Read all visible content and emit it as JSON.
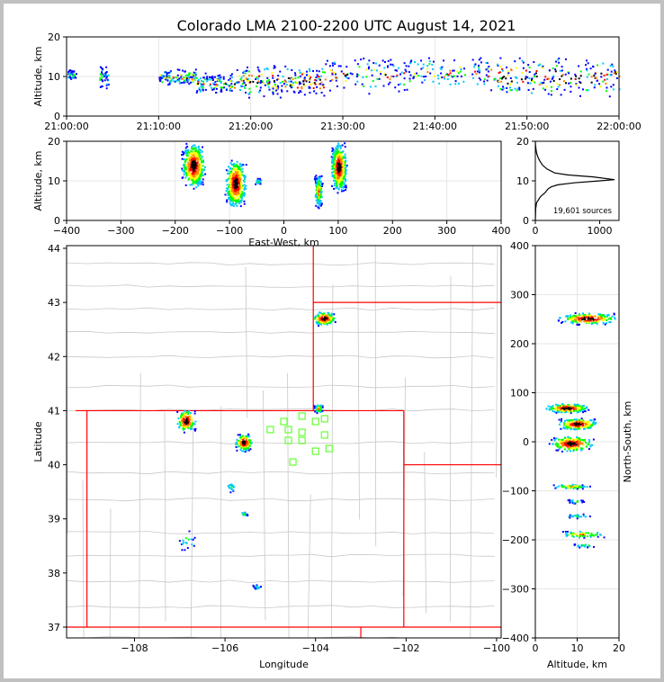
{
  "title": "Colorado LMA 2100-2200 UTC August 14, 2021",
  "colors": {
    "frame_background": "#c0c0c0",
    "state_border": "#ff0000",
    "county_border": "#c8c8c8",
    "station_marker": "#66ff33",
    "density_palette": [
      "#0000ff",
      "#00c8ff",
      "#00ff00",
      "#ffff00",
      "#ff8000",
      "#ff0000",
      "#000000"
    ]
  },
  "chart_data": [
    {
      "id": "altitude-time",
      "type": "heatmap",
      "xlabel": "",
      "ylabel": "Altitude, km",
      "x_ticks": [
        "21:00:00",
        "21:10:00",
        "21:20:00",
        "21:30:00",
        "21:40:00",
        "21:50:00",
        "22:00:00"
      ],
      "y_ticks": [
        0,
        10,
        20
      ],
      "ylim": [
        0,
        20
      ],
      "x_range_minutes": [
        0,
        60
      ],
      "grid": true,
      "source_clusters": [
        {
          "t_min": [
            0,
            1
          ],
          "alt": [
            9,
            12
          ],
          "density": "low"
        },
        {
          "t_min": [
            3.5,
            4.5
          ],
          "alt": [
            7,
            13
          ],
          "density": "low"
        },
        {
          "t_min": [
            10,
            14
          ],
          "alt": [
            8,
            12
          ],
          "density": "medium"
        },
        {
          "t_min": [
            14,
            18
          ],
          "alt": [
            6,
            11
          ],
          "density": "medium"
        },
        {
          "t_min": [
            18,
            28
          ],
          "alt": [
            5,
            13
          ],
          "density": "high"
        },
        {
          "t_min": [
            28,
            37
          ],
          "alt": [
            6,
            15
          ],
          "density": "medium"
        },
        {
          "t_min": [
            37,
            46
          ],
          "alt": [
            7,
            15
          ],
          "density": "medium"
        },
        {
          "t_min": [
            46,
            60
          ],
          "alt": [
            5,
            15
          ],
          "density": "high"
        }
      ]
    },
    {
      "id": "altitude-eastwest",
      "type": "heatmap",
      "xlabel": "East-West, km",
      "ylabel": "Altitude, km",
      "x_ticks": [
        -400,
        -300,
        -200,
        -100,
        0,
        100,
        200,
        300,
        400
      ],
      "y_ticks": [
        0,
        10,
        20
      ],
      "xlim": [
        -400,
        400
      ],
      "ylim": [
        0,
        20
      ],
      "grid": true,
      "source_clusters": [
        {
          "x": [
            -190,
            -145
          ],
          "alt": [
            8,
            20
          ],
          "density": "high"
        },
        {
          "x": [
            -110,
            -70
          ],
          "alt": [
            3,
            16
          ],
          "density": "high"
        },
        {
          "x": [
            -55,
            -42
          ],
          "alt": [
            9,
            11
          ],
          "density": "low"
        },
        {
          "x": [
            55,
            70
          ],
          "alt": [
            3,
            12
          ],
          "density": "medium"
        },
        {
          "x": [
            85,
            115
          ],
          "alt": [
            7,
            20
          ],
          "density": "high"
        }
      ]
    },
    {
      "id": "altitude-histogram",
      "type": "line",
      "xlabel": "",
      "ylabel": "",
      "x_ticks": [
        0,
        1000
      ],
      "y_ticks": [
        0,
        10,
        20
      ],
      "xlim": [
        0,
        1300
      ],
      "ylim": [
        0,
        20
      ],
      "annotation": "19,601 sources",
      "grid": false,
      "series": [
        {
          "x": [
            0,
            5,
            20,
            40,
            80,
            150,
            200,
            250,
            350,
            600,
            1000,
            1230,
            900,
            500,
            300,
            180,
            110,
            70,
            40,
            20,
            10,
            3,
            0
          ],
          "y": [
            0,
            3,
            4.5,
            5,
            6,
            7,
            8,
            8.5,
            9,
            9.5,
            10,
            10.3,
            11,
            11.5,
            12,
            13,
            14,
            15,
            16,
            17,
            18,
            19,
            20
          ]
        }
      ]
    },
    {
      "id": "plan-view",
      "type": "scatter",
      "xlabel": "Longitude",
      "ylabel": "Latitude",
      "x_ticks": [
        -108,
        -106,
        -104,
        -102,
        -100
      ],
      "y_ticks": [
        37,
        38,
        39,
        40,
        41,
        42,
        43,
        44
      ],
      "xlim": [
        -109.5,
        -99.9
      ],
      "ylim": [
        36.8,
        44.05
      ],
      "grid": false,
      "stations": [
        {
          "lon": -104.3,
          "lat": 40.9
        },
        {
          "lon": -104.7,
          "lat": 40.8
        },
        {
          "lon": -104.0,
          "lat": 40.8
        },
        {
          "lon": -103.8,
          "lat": 40.85
        },
        {
          "lon": -105.0,
          "lat": 40.65
        },
        {
          "lon": -104.6,
          "lat": 40.65
        },
        {
          "lon": -104.3,
          "lat": 40.6
        },
        {
          "lon": -103.8,
          "lat": 40.55
        },
        {
          "lon": -104.6,
          "lat": 40.45
        },
        {
          "lon": -104.3,
          "lat": 40.45
        },
        {
          "lon": -103.7,
          "lat": 40.3
        },
        {
          "lon": -104.0,
          "lat": 40.25
        },
        {
          "lon": -104.5,
          "lat": 40.05
        }
      ],
      "source_clusters": [
        {
          "lon": [
            -104.1,
            -103.55
          ],
          "lat": [
            42.58,
            42.85
          ],
          "density": "high"
        },
        {
          "lon": [
            -107.1,
            -106.65
          ],
          "lat": [
            40.6,
            41.05
          ],
          "density": "high"
        },
        {
          "lon": [
            -105.8,
            -105.4
          ],
          "lat": [
            40.25,
            40.6
          ],
          "density": "high"
        },
        {
          "lon": [
            -104.05,
            -103.85
          ],
          "lat": [
            40.95,
            41.15
          ],
          "density": "medium"
        },
        {
          "lon": [
            -106.0,
            -105.75
          ],
          "lat": [
            39.5,
            39.7
          ],
          "density": "low"
        },
        {
          "lon": [
            -105.7,
            -105.5
          ],
          "lat": [
            39.05,
            39.15
          ],
          "density": "low"
        },
        {
          "lon": [
            -107.05,
            -106.65
          ],
          "lat": [
            38.4,
            38.85
          ],
          "density": "low"
        },
        {
          "lon": [
            -105.4,
            -105.2
          ],
          "lat": [
            37.7,
            37.8
          ],
          "density": "low"
        }
      ]
    },
    {
      "id": "northsouth-altitude",
      "type": "heatmap",
      "xlabel": "Altitude, km",
      "ylabel": "North-South, km",
      "x_ticks": [
        0,
        10,
        20
      ],
      "y_ticks": [
        -400,
        -300,
        -200,
        -100,
        0,
        100,
        200,
        300,
        400
      ],
      "xlim": [
        0,
        20
      ],
      "ylim": [
        -400,
        400
      ],
      "grid": true,
      "source_clusters": [
        {
          "alt": [
            5,
            20
          ],
          "ns": [
            240,
            265
          ],
          "density": "high"
        },
        {
          "alt": [
            2,
            13
          ],
          "ns": [
            60,
            80
          ],
          "density": "high"
        },
        {
          "alt": [
            5,
            15
          ],
          "ns": [
            25,
            50
          ],
          "density": "high"
        },
        {
          "alt": [
            3,
            14
          ],
          "ns": [
            -20,
            15
          ],
          "density": "high"
        },
        {
          "alt": [
            4,
            13
          ],
          "ns": [
            -95,
            -85
          ],
          "density": "medium"
        },
        {
          "alt": [
            7,
            12
          ],
          "ns": [
            -125,
            -115
          ],
          "density": "low"
        },
        {
          "alt": [
            6,
            14
          ],
          "ns": [
            -155,
            -145
          ],
          "density": "low"
        },
        {
          "alt": [
            5,
            17
          ],
          "ns": [
            -195,
            -180
          ],
          "density": "medium"
        },
        {
          "alt": [
            8,
            16
          ],
          "ns": [
            -215,
            -205
          ],
          "density": "low"
        }
      ]
    }
  ]
}
